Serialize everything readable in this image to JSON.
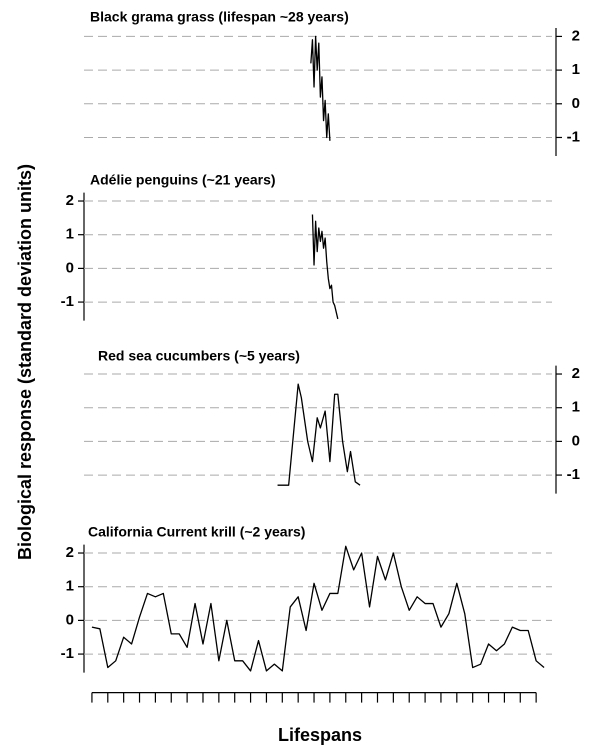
{
  "ylabel": "Biological response (standard deviation units)",
  "xlabel": "Lifespans",
  "chart_data": [
    {
      "type": "line",
      "title": "Black grama grass (lifespan ~28 years)",
      "color": "#000000",
      "x": [
        13.8,
        13.9,
        14.0,
        14.1,
        14.2,
        14.3,
        14.4,
        14.5,
        14.6,
        14.7,
        14.8,
        14.9,
        15.0
      ],
      "values": [
        1.2,
        1.9,
        0.5,
        2.0,
        1.0,
        1.8,
        0.2,
        0.8,
        -0.5,
        0.1,
        -1.0,
        -0.3,
        -1.1
      ],
      "xlim": [
        -0.5,
        29
      ],
      "ylim": [
        -1.55,
        2.25
      ],
      "yticks": [
        -1,
        0,
        1,
        2
      ],
      "y_axis_side": "right",
      "grid": true
    },
    {
      "type": "line",
      "title": "Adélie penguins (~21 years)",
      "color": "#000000",
      "x": [
        13.9,
        14.0,
        14.1,
        14.2,
        14.3,
        14.4,
        14.5,
        14.6,
        14.7,
        14.8,
        14.9,
        15.0,
        15.1,
        15.2,
        15.3,
        15.5
      ],
      "values": [
        1.6,
        0.1,
        1.4,
        0.5,
        1.2,
        0.8,
        1.1,
        0.6,
        0.9,
        0.2,
        -0.3,
        -0.6,
        -0.5,
        -1.0,
        -1.1,
        -1.5
      ],
      "xlim": [
        -0.5,
        29
      ],
      "ylim": [
        -1.55,
        2.25
      ],
      "yticks": [
        -1,
        0,
        1,
        2
      ],
      "y_axis_side": "left",
      "grid": true
    },
    {
      "type": "line",
      "title": "Red sea cucumbers (~5 years)",
      "color": "#000000",
      "x": [
        11.7,
        12.4,
        13.0,
        13.2,
        13.6,
        13.9,
        14.2,
        14.4,
        14.7,
        15.0,
        15.3,
        15.5,
        15.8,
        16.1,
        16.3,
        16.6,
        16.9
      ],
      "values": [
        -1.3,
        -1.3,
        1.7,
        1.3,
        0.0,
        -0.6,
        0.7,
        0.4,
        0.9,
        -0.6,
        1.4,
        1.4,
        0.0,
        -0.9,
        -0.3,
        -1.2,
        -1.3
      ],
      "xlim": [
        -0.5,
        29
      ],
      "ylim": [
        -1.55,
        2.25
      ],
      "yticks": [
        -1,
        0,
        1,
        2
      ],
      "y_axis_side": "right",
      "grid": true
    },
    {
      "type": "line",
      "title": "California Current krill (~2 years)",
      "color": "#000000",
      "x": [
        0,
        0.5,
        1,
        1.5,
        2,
        2.5,
        3,
        3.5,
        4,
        4.5,
        5,
        5.5,
        6,
        6.5,
        7,
        7.5,
        8,
        8.5,
        9,
        9.5,
        10,
        10.5,
        11,
        11.5,
        12,
        12.5,
        13,
        13.5,
        14,
        14.5,
        15,
        15.5,
        16,
        16.5,
        17,
        17.5,
        18,
        18.5,
        19,
        19.5,
        20,
        20.5,
        21,
        21.5,
        22,
        22.5,
        23,
        23.5,
        24,
        24.5,
        25,
        25.5,
        26,
        26.5,
        27,
        27.5,
        28,
        28.5
      ],
      "values": [
        -0.2,
        -0.25,
        -1.4,
        -1.2,
        -0.5,
        -0.7,
        0.1,
        0.8,
        0.7,
        0.8,
        -0.4,
        -0.4,
        -0.8,
        0.5,
        -0.7,
        0.5,
        -1.2,
        0.0,
        -1.2,
        -1.2,
        -1.5,
        -0.6,
        -1.5,
        -1.3,
        -1.5,
        0.4,
        0.7,
        -0.3,
        1.1,
        0.3,
        0.8,
        0.8,
        2.2,
        1.5,
        2.0,
        0.4,
        1.9,
        1.2,
        2.0,
        1.0,
        0.3,
        0.7,
        0.5,
        0.5,
        -0.2,
        0.2,
        1.1,
        0.2,
        -1.4,
        -1.3,
        -0.7,
        -0.9,
        -0.7,
        -0.2,
        -0.3,
        -0.3,
        -1.2,
        -1.4
      ],
      "xlim": [
        -0.5,
        29
      ],
      "ylim": [
        -1.55,
        2.25
      ],
      "yticks": [
        -1,
        0,
        1,
        2
      ],
      "y_axis_side": "left",
      "grid": true,
      "xticks": [
        0,
        1,
        2,
        3,
        4,
        5,
        6,
        7,
        8,
        9,
        10,
        11,
        12,
        13,
        14,
        15,
        16,
        17,
        18,
        19,
        20,
        21,
        22,
        23,
        24,
        25,
        26,
        27,
        28
      ]
    }
  ]
}
